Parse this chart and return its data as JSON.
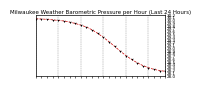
{
  "title": "Milwaukee Weather Barometric Pressure per Hour (Last 24 Hours)",
  "hours": [
    0,
    1,
    2,
    3,
    4,
    5,
    6,
    7,
    8,
    9,
    10,
    11,
    12,
    13,
    14,
    15,
    16,
    17,
    18,
    19,
    20,
    21,
    22,
    23
  ],
  "pressure": [
    30.05,
    30.04,
    30.03,
    30.01,
    29.99,
    29.97,
    29.93,
    29.88,
    29.82,
    29.75,
    29.65,
    29.52,
    29.38,
    29.22,
    29.05,
    28.88,
    28.72,
    28.58,
    28.46,
    28.36,
    28.28,
    28.22,
    28.18,
    28.15
  ],
  "line_color": "#cc0000",
  "marker_color": "#000000",
  "bg_color": "#ffffff",
  "border_color": "#000000",
  "grid_color": "#888888",
  "ylim_min": 28.0,
  "ylim_max": 30.2,
  "ytick_interval": 0.1,
  "title_fontsize": 4.0,
  "tick_fontsize": 3.0,
  "linewidth": 0.5,
  "markersize": 1.8
}
